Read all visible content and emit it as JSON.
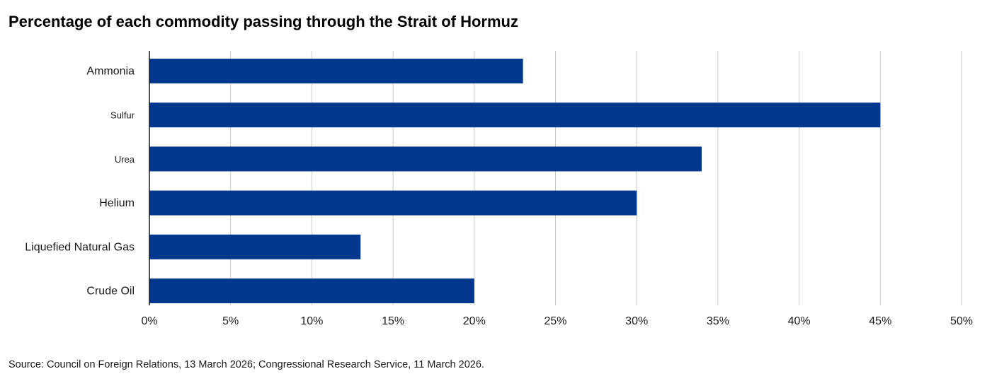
{
  "title": "Percentage of each commodity passing through the Strait of Hormuz",
  "source": "Source: Council on Foreign Relations, 13 March 2026; Congressional Research Service, 11 March 2026.",
  "colors": {
    "bar": "#02378E",
    "grid": "#c8c8c8",
    "axis": "#1a1a1a"
  },
  "chart_data": {
    "type": "bar",
    "orientation": "horizontal",
    "title": "Percentage of each commodity passing through the Strait of Hormuz",
    "categories": [
      "Ammonia",
      "Sulfur",
      "Urea",
      "Helium",
      "Liquefied Natural Gas",
      "Crude Oil"
    ],
    "values": [
      23,
      45,
      34,
      30,
      13,
      20
    ],
    "unit": "%",
    "xlim": [
      0,
      50
    ],
    "xticks": [
      "0%",
      "5%",
      "10%",
      "15%",
      "20%",
      "25%",
      "30%",
      "35%",
      "40%",
      "45%",
      "50%"
    ],
    "xlabel": "",
    "ylabel": "",
    "grid": "vertical",
    "legend": "none"
  }
}
